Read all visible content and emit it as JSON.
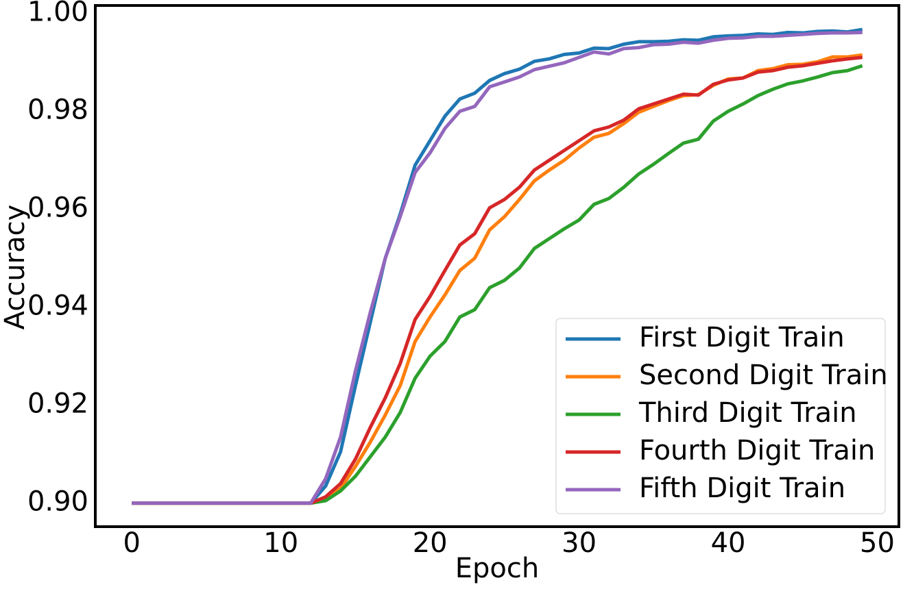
{
  "chart_data": {
    "type": "line",
    "x_label": "Epoch",
    "y_label": "Accuracy",
    "x": [
      0,
      1,
      2,
      3,
      4,
      5,
      6,
      7,
      8,
      9,
      10,
      11,
      12,
      13,
      14,
      15,
      16,
      17,
      18,
      19,
      20,
      21,
      22,
      23,
      24,
      25,
      26,
      27,
      28,
      29,
      30,
      31,
      32,
      33,
      34,
      35,
      36,
      37,
      38,
      39,
      40,
      41,
      42,
      43,
      44,
      45,
      46,
      47,
      48,
      49
    ],
    "xlim": [
      -2.45,
      51.45
    ],
    "xticks": [
      0,
      10,
      20,
      30,
      40,
      50
    ],
    "ylim": [
      0.8952,
      1.0016
    ],
    "yticks": [
      {
        "value": 0.9,
        "label": "0.90"
      },
      0.92,
      0.94,
      0.96,
      0.98,
      {
        "value": 1.0,
        "label": "1.00"
      }
    ],
    "grid": false,
    "legend": "lower right",
    "series": [
      {
        "name": "First Digit Train",
        "color": "#1f77b4",
        "values": [
          0.9,
          0.9,
          0.9,
          0.9,
          0.9,
          0.9,
          0.9,
          0.9,
          0.9,
          0.9,
          0.9,
          0.9,
          0.9,
          0.9035,
          0.9105,
          0.924,
          0.937,
          0.95,
          0.959,
          0.969,
          0.974,
          0.979,
          0.9825,
          0.9837,
          0.9863,
          0.9877,
          0.9886,
          0.9902,
          0.9907,
          0.9916,
          0.9919,
          0.9929,
          0.9928,
          0.9937,
          0.9942,
          0.9942,
          0.9943,
          0.9946,
          0.9945,
          0.9952,
          0.9954,
          0.9955,
          0.9958,
          0.9957,
          0.9961,
          0.996,
          0.9963,
          0.9964,
          0.9962,
          0.9967
        ]
      },
      {
        "name": "Second Digit Train",
        "color": "#ff7f0e",
        "values": [
          0.9,
          0.9,
          0.9,
          0.9,
          0.9,
          0.9,
          0.9,
          0.9,
          0.9,
          0.9,
          0.9,
          0.9,
          0.9,
          0.901,
          0.903,
          0.9075,
          0.9125,
          0.918,
          0.924,
          0.933,
          0.938,
          0.9425,
          0.9475,
          0.95,
          0.9558,
          0.9585,
          0.962,
          0.9658,
          0.968,
          0.97,
          0.9725,
          0.9747,
          0.9755,
          0.9775,
          0.9798,
          0.981,
          0.9822,
          0.9832,
          0.9834,
          0.9853,
          0.9866,
          0.9868,
          0.9883,
          0.9887,
          0.9895,
          0.9896,
          0.9901,
          0.9911,
          0.9911,
          0.9915
        ]
      },
      {
        "name": "Third Digit Train",
        "color": "#2ca02c",
        "values": [
          0.9,
          0.9,
          0.9,
          0.9,
          0.9,
          0.9,
          0.9,
          0.9,
          0.9,
          0.9,
          0.9,
          0.9,
          0.9,
          0.9005,
          0.9025,
          0.9055,
          0.9095,
          0.9135,
          0.9185,
          0.9255,
          0.93,
          0.933,
          0.938,
          0.9395,
          0.944,
          0.9455,
          0.948,
          0.952,
          0.954,
          0.956,
          0.9578,
          0.961,
          0.9622,
          0.9645,
          0.9672,
          0.9692,
          0.9714,
          0.9735,
          0.9743,
          0.978,
          0.98,
          0.9815,
          0.9832,
          0.9845,
          0.9856,
          0.9862,
          0.987,
          0.9879,
          0.9883,
          0.9893
        ]
      },
      {
        "name": "Fourth Digit Train",
        "color": "#d62728",
        "values": [
          0.9,
          0.9,
          0.9,
          0.9,
          0.9,
          0.9,
          0.9,
          0.9,
          0.9,
          0.9,
          0.9,
          0.9,
          0.9,
          0.9013,
          0.904,
          0.909,
          0.9155,
          0.9215,
          0.9285,
          0.9375,
          0.9422,
          0.9475,
          0.9527,
          0.955,
          0.9603,
          0.962,
          0.9645,
          0.968,
          0.97,
          0.972,
          0.974,
          0.976,
          0.9768,
          0.9782,
          0.9805,
          0.9815,
          0.9825,
          0.9835,
          0.9833,
          0.9855,
          0.9864,
          0.9868,
          0.988,
          0.9883,
          0.989,
          0.9893,
          0.9898,
          0.9903,
          0.9907,
          0.991
        ]
      },
      {
        "name": "Fifth Digit Train",
        "color": "#9467bd",
        "values": [
          0.9,
          0.9,
          0.9,
          0.9,
          0.9,
          0.9,
          0.9,
          0.9,
          0.9,
          0.9,
          0.9,
          0.9,
          0.9,
          0.905,
          0.9135,
          0.927,
          0.939,
          0.95,
          0.9585,
          0.9675,
          0.9715,
          0.9765,
          0.98,
          0.981,
          0.985,
          0.986,
          0.987,
          0.9885,
          0.9892,
          0.9899,
          0.991,
          0.9921,
          0.9917,
          0.9928,
          0.993,
          0.9936,
          0.9937,
          0.9941,
          0.9939,
          0.9945,
          0.9949,
          0.995,
          0.9953,
          0.9953,
          0.9955,
          0.9957,
          0.9959,
          0.996,
          0.996,
          0.9961
        ]
      }
    ]
  }
}
